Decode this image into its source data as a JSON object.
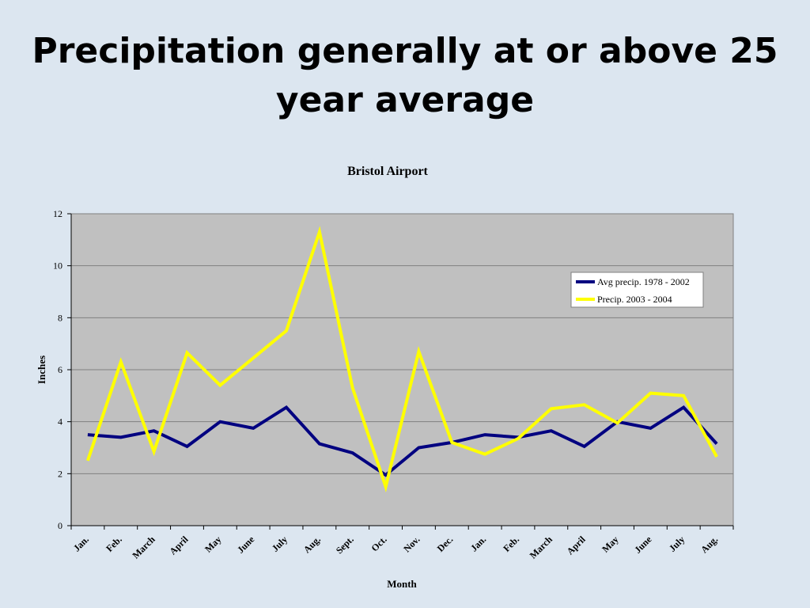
{
  "slide": {
    "title_line1": "Precipitation generally at or above 25",
    "title_line2": "year average"
  },
  "chart_data": {
    "type": "line",
    "title": "Bristol Airport",
    "xlabel": "Month",
    "ylabel": "Inches",
    "ylim": [
      0,
      12
    ],
    "yticks": [
      0,
      2,
      4,
      6,
      8,
      10,
      12
    ],
    "grid": true,
    "legend_position": "top-right",
    "categories": [
      "Jan.",
      "Feb.",
      "March",
      "April",
      "May",
      "June",
      "July",
      "Aug.",
      "Sept.",
      "Oct.",
      "Nov.",
      "Dec.",
      "Jan.",
      "Feb.",
      "March",
      "April",
      "May",
      "June",
      "July",
      "Aug."
    ],
    "series": [
      {
        "name": "Avg precip. 1978 - 2002",
        "color": "#000080",
        "values": [
          3.5,
          3.4,
          3.65,
          3.05,
          4.0,
          3.75,
          4.55,
          3.15,
          2.8,
          1.95,
          3.0,
          3.2,
          3.5,
          3.4,
          3.65,
          3.05,
          4.0,
          3.75,
          4.55,
          3.15
        ]
      },
      {
        "name": "Precip. 2003 - 2004",
        "color": "#ffff00",
        "values": [
          2.5,
          6.3,
          2.85,
          6.65,
          5.4,
          6.45,
          7.5,
          11.3,
          5.3,
          1.5,
          6.7,
          3.2,
          2.75,
          3.35,
          4.5,
          4.65,
          3.95,
          5.1,
          5.0,
          2.65
        ]
      }
    ]
  }
}
